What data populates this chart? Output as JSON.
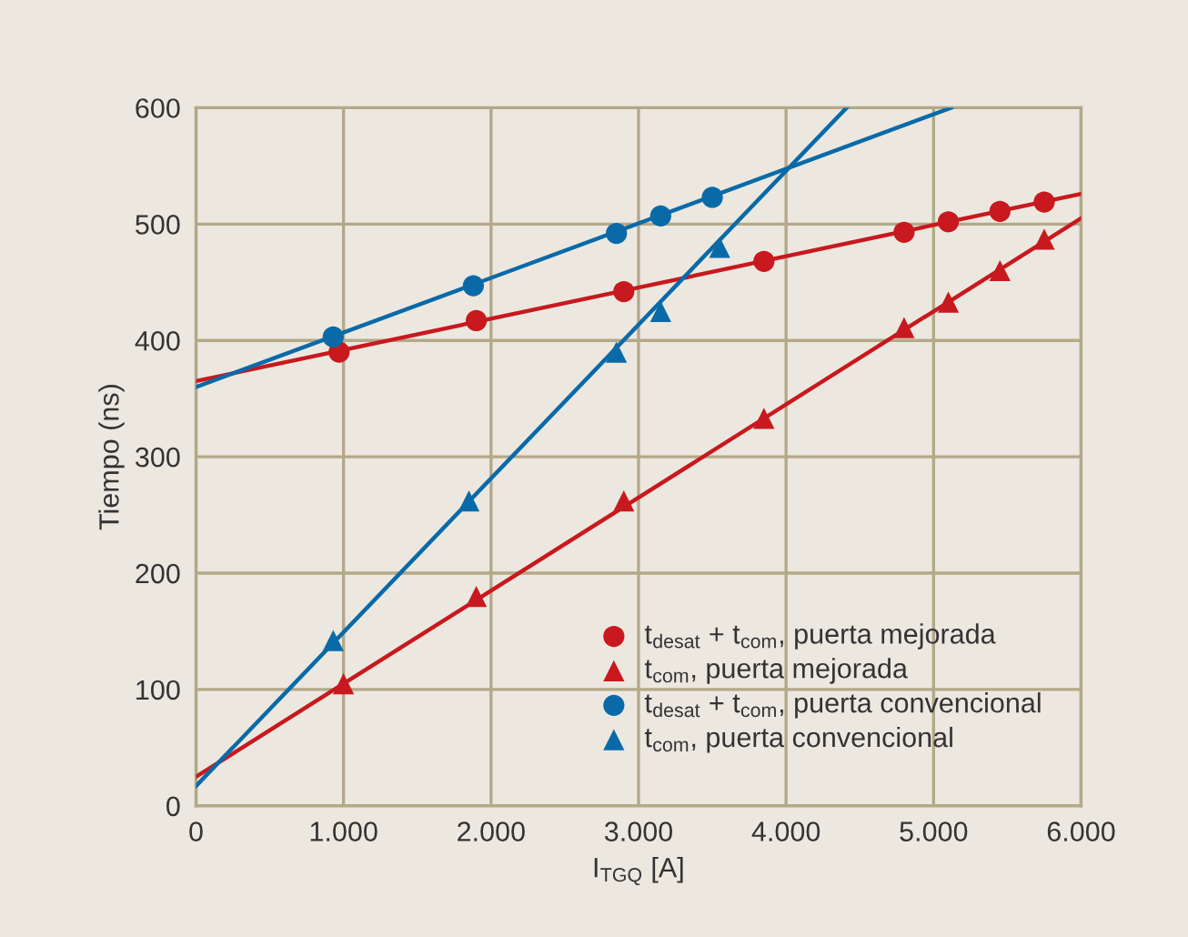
{
  "chart_data": {
    "type": "scatter",
    "xlabel": "I$_{TGQ}$ [A]",
    "ylabel": "Tiempo (ns)",
    "xlim": [
      0,
      6000
    ],
    "ylim": [
      0,
      600
    ],
    "xticks": [
      0,
      {
        "value": 1000,
        "label": "1.000"
      },
      {
        "value": 2000,
        "label": "2.000"
      },
      {
        "value": 3000,
        "label": "3.000"
      },
      {
        "value": 4000,
        "label": "4.000"
      },
      {
        "value": 5000,
        "label": "5.000"
      },
      {
        "value": 6000,
        "label": "6.000"
      }
    ],
    "yticks": [
      0,
      100,
      200,
      300,
      400,
      500,
      600
    ],
    "grid": true,
    "legend": "bottom right",
    "series": [
      {
        "type": "line",
        "color": "#c8191e",
        "marker": "none",
        "x": [
          0,
          6000
        ],
        "values": [
          365,
          526
        ]
      },
      {
        "type": "line",
        "color": "#c8191e",
        "marker": "none",
        "x": [
          0,
          6000
        ],
        "values": [
          25,
          505
        ]
      },
      {
        "type": "line",
        "color": "#0a6aa8",
        "marker": "none",
        "x": [
          0,
          5120
        ],
        "values": [
          360,
          600
        ]
      },
      {
        "type": "line",
        "color": "#0a6aa8",
        "marker": "none",
        "x": [
          0,
          4410
        ],
        "values": [
          17,
          600
        ]
      },
      {
        "name": "t$_{desat}$ + t$_{com}$, puerta mejorada",
        "color": "#c8191e",
        "marker": "circle",
        "x": [
          970,
          1900,
          2900,
          3850,
          4800,
          5100,
          5450,
          5750
        ],
        "values": [
          390,
          417,
          442,
          468,
          493,
          502,
          511,
          519
        ]
      },
      {
        "name": "t$_{com}$, puerta mejorada",
        "color": "#c8191e",
        "marker": "triangle",
        "x": [
          1000,
          1900,
          2900,
          3850,
          4800,
          5100,
          5450,
          5750
        ],
        "values": [
          105,
          180,
          262,
          333,
          411,
          433,
          460,
          487
        ]
      },
      {
        "name": "t$_{desat}$ + t$_{com}$, puerta convencional",
        "color": "#0a6aa8",
        "marker": "circle",
        "x": [
          930,
          1880,
          2850,
          3150,
          3500
        ],
        "values": [
          403,
          447,
          492,
          507,
          523
        ]
      },
      {
        "name": "t$_{com}$, puerta convencional",
        "color": "#0a6aa8",
        "marker": "triangle",
        "x": [
          930,
          1850,
          2850,
          3150,
          3550
        ],
        "values": [
          142,
          262,
          390,
          425,
          480
        ]
      }
    ]
  }
}
